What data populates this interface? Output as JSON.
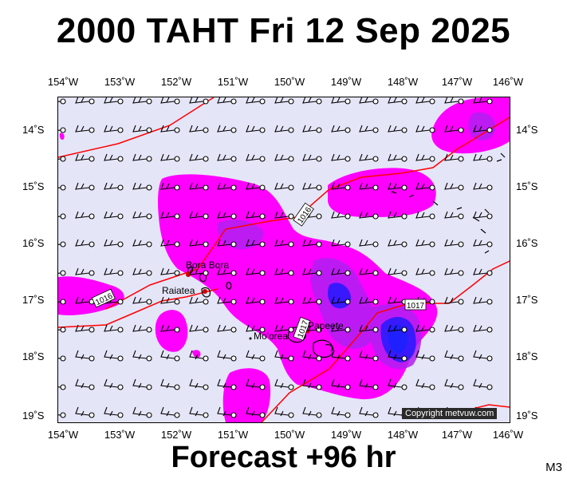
{
  "header": {
    "title": "2000 TAHT Fri 12 Sep 2025"
  },
  "footer": {
    "label": "Forecast +96 hr",
    "model": "M3"
  },
  "axes": {
    "lon_labels": [
      "154˚W",
      "153˚W",
      "152˚W",
      "151˚W",
      "150˚W",
      "149˚W",
      "148˚W",
      "147˚W",
      "146˚W"
    ],
    "lat_labels": [
      "14˚S",
      "15˚S",
      "16˚S",
      "17˚S",
      "18˚S",
      "19˚S"
    ]
  },
  "places": {
    "bora_bora": "Bora Bora",
    "raiatea": "Raiatea",
    "papeete": "Papeete",
    "moorea": "Mo'orea"
  },
  "isobars": [
    "1016",
    "1016",
    "1017",
    "1017"
  ],
  "copyright": "Copyright metvuw.com",
  "colors": {
    "background": "#e5e5f8",
    "rain_light": "#ff00ff",
    "rain_moderate": "#a020f0",
    "rain_heavy": "#1010ff",
    "isobar": "#ff0000"
  }
}
